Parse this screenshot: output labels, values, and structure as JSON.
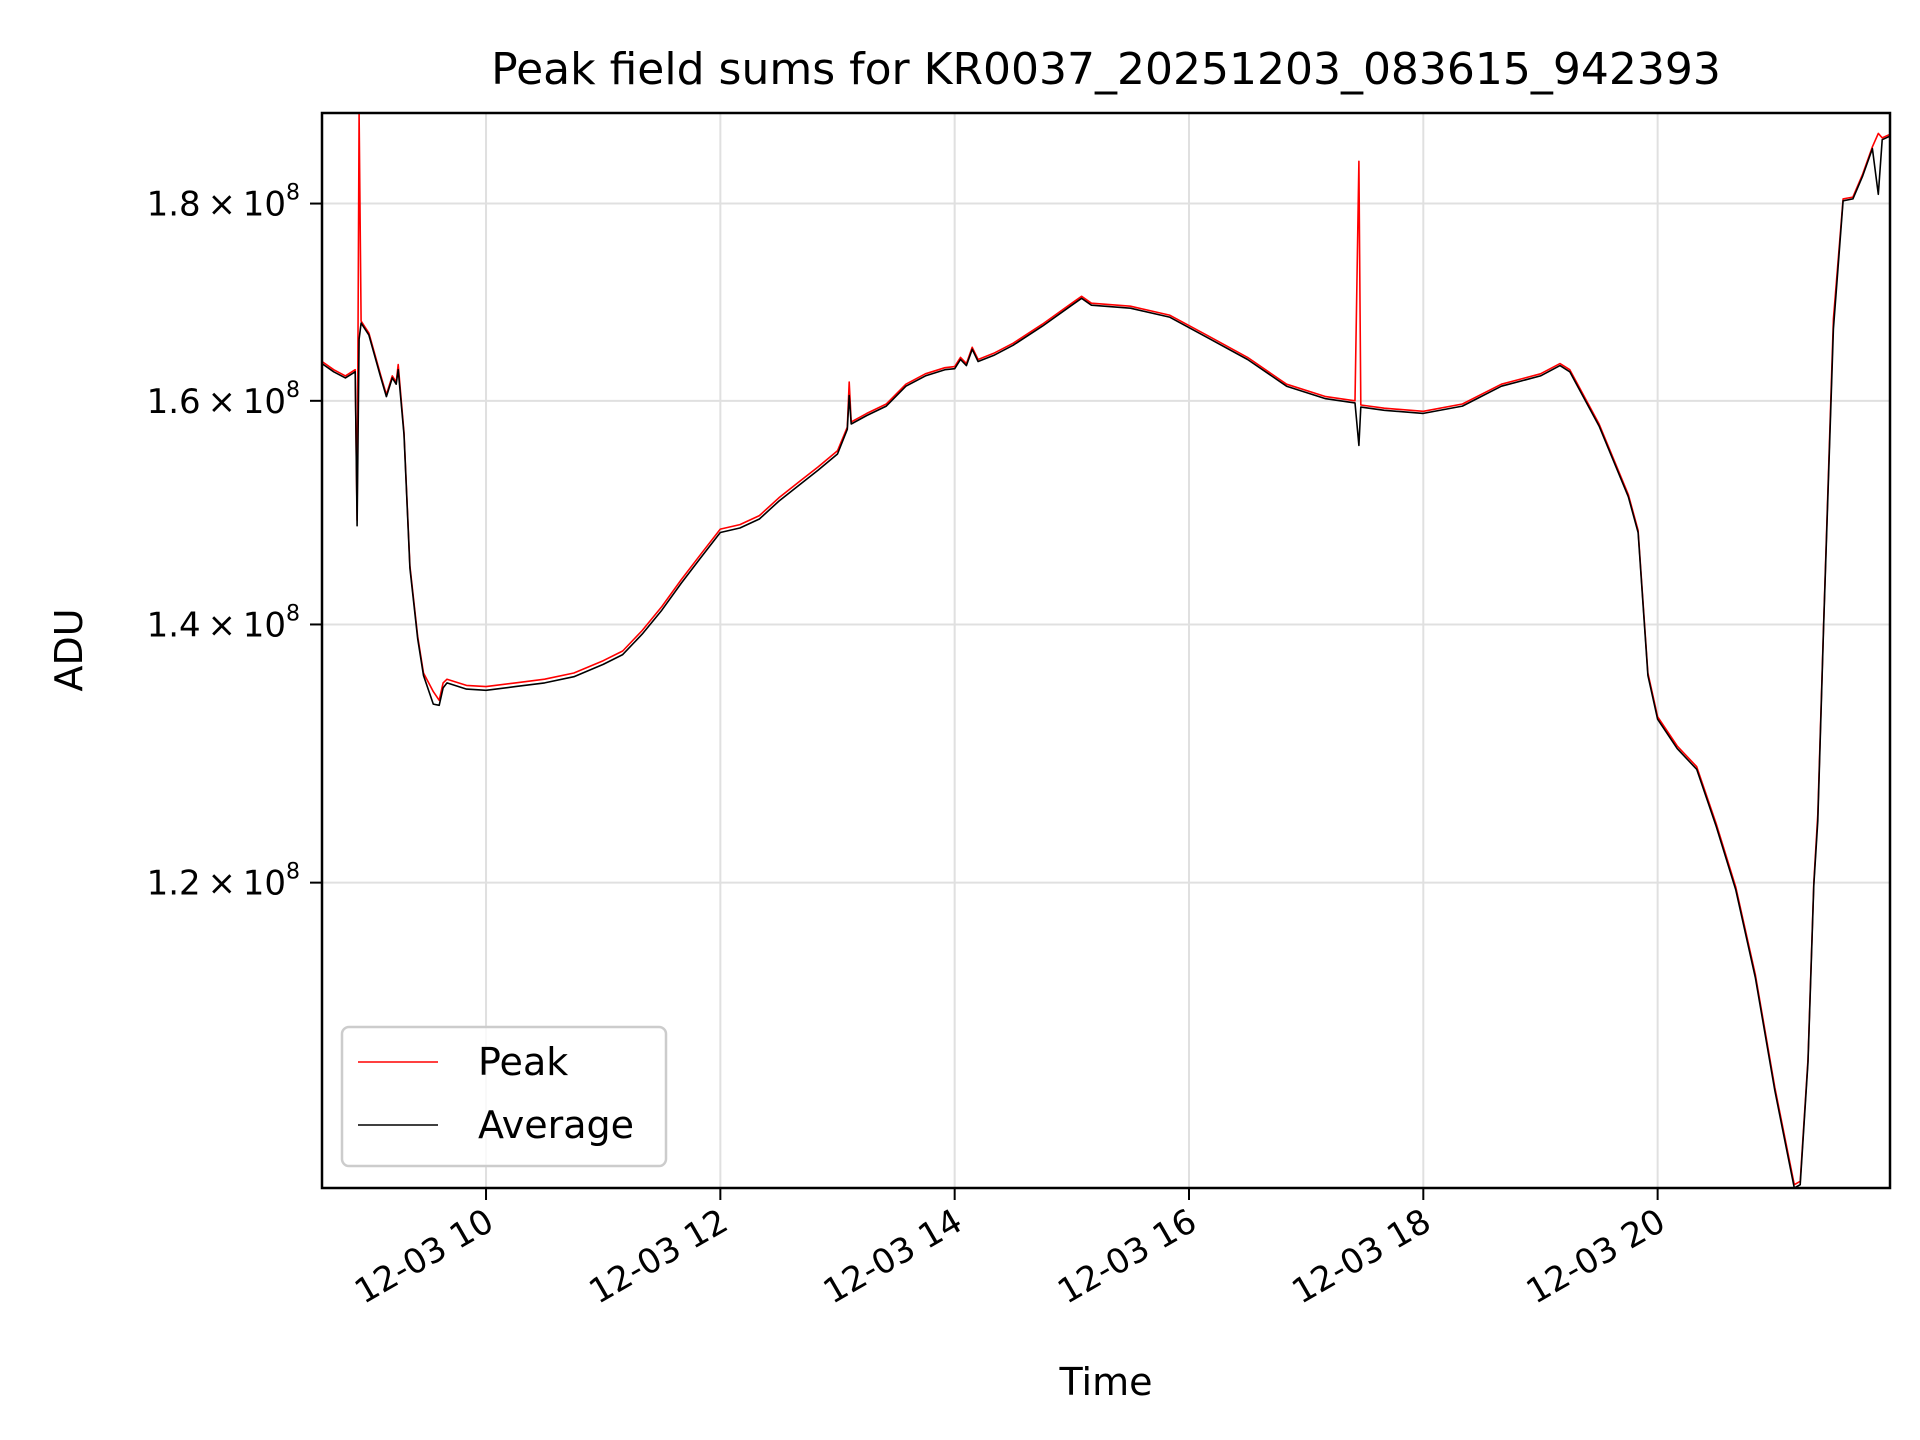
{
  "chart_data": {
    "type": "line",
    "title": "Peak field sums for KR0037_20251203_083615_942393",
    "xlabel": "Time",
    "ylabel": "ADU",
    "y_scale": "log",
    "xlim": [
      "2025-12-03 08:36",
      "2025-12-03 21:59"
    ],
    "ylim": [
      100000000,
      190000000
    ],
    "grid": true,
    "legend_placement": "lower-left",
    "x_ticks": [
      {
        "value": "2025-12-03 10:00",
        "label": "12-03 10"
      },
      {
        "value": "2025-12-03 12:00",
        "label": "12-03 12"
      },
      {
        "value": "2025-12-03 14:00",
        "label": "12-03 14"
      },
      {
        "value": "2025-12-03 16:00",
        "label": "12-03 16"
      },
      {
        "value": "2025-12-03 18:00",
        "label": "12-03 18"
      },
      {
        "value": "2025-12-03 20:00",
        "label": "12-03 20"
      }
    ],
    "y_ticks": [
      {
        "value": 120000000,
        "mantissa": "1.2",
        "base": "10",
        "exp": "8"
      },
      {
        "value": 140000000,
        "mantissa": "1.4",
        "base": "10",
        "exp": "8"
      },
      {
        "value": 160000000,
        "mantissa": "1.6",
        "base": "10",
        "exp": "8"
      },
      {
        "value": 180000000,
        "mantissa": "1.8",
        "base": "10",
        "exp": "8"
      }
    ],
    "series": [
      {
        "name": "Peak",
        "color": "#ff0000",
        "points": [
          [
            "2025-12-03 08:36",
            163800000
          ],
          [
            "2025-12-03 08:42",
            163000000
          ],
          [
            "2025-12-03 08:48",
            162400000
          ],
          [
            "2025-12-03 08:53",
            163000000
          ],
          [
            "2025-12-03 08:54",
            149000000
          ],
          [
            "2025-12-03 08:55",
            190000000
          ],
          [
            "2025-12-03 08:56",
            167800000
          ],
          [
            "2025-12-03 09:00",
            166600000
          ],
          [
            "2025-12-03 09:06",
            162500000
          ],
          [
            "2025-12-03 09:09",
            160600000
          ],
          [
            "2025-12-03 09:12",
            162400000
          ],
          [
            "2025-12-03 09:14",
            161800000
          ],
          [
            "2025-12-03 09:15",
            163500000
          ],
          [
            "2025-12-03 09:18",
            157000000
          ],
          [
            "2025-12-03 09:21",
            145000000
          ],
          [
            "2025-12-03 09:25",
            139000000
          ],
          [
            "2025-12-03 09:28",
            136000000
          ],
          [
            "2025-12-03 09:33",
            134500000
          ],
          [
            "2025-12-03 09:36",
            133800000
          ],
          [
            "2025-12-03 09:38",
            135200000
          ],
          [
            "2025-12-03 09:40",
            135500000
          ],
          [
            "2025-12-03 09:50",
            135000000
          ],
          [
            "2025-12-03 10:00",
            134900000
          ],
          [
            "2025-12-03 10:15",
            135200000
          ],
          [
            "2025-12-03 10:30",
            135500000
          ],
          [
            "2025-12-03 10:45",
            136000000
          ],
          [
            "2025-12-03 11:00",
            137000000
          ],
          [
            "2025-12-03 11:10",
            137800000
          ],
          [
            "2025-12-03 11:20",
            139500000
          ],
          [
            "2025-12-03 11:30",
            141500000
          ],
          [
            "2025-12-03 11:40",
            143800000
          ],
          [
            "2025-12-03 11:50",
            146000000
          ],
          [
            "2025-12-03 12:00",
            148200000
          ],
          [
            "2025-12-03 12:10",
            148600000
          ],
          [
            "2025-12-03 12:20",
            149400000
          ],
          [
            "2025-12-03 12:30",
            151000000
          ],
          [
            "2025-12-03 12:40",
            152400000
          ],
          [
            "2025-12-03 12:50",
            153800000
          ],
          [
            "2025-12-03 13:00",
            155300000
          ],
          [
            "2025-12-03 13:05",
            157500000
          ],
          [
            "2025-12-03 13:06",
            161800000
          ],
          [
            "2025-12-03 13:07",
            158000000
          ],
          [
            "2025-12-03 13:15",
            158800000
          ],
          [
            "2025-12-03 13:25",
            159700000
          ],
          [
            "2025-12-03 13:35",
            161600000
          ],
          [
            "2025-12-03 13:45",
            162600000
          ],
          [
            "2025-12-03 13:55",
            163200000
          ],
          [
            "2025-12-03 14:00",
            163300000
          ],
          [
            "2025-12-03 14:03",
            164200000
          ],
          [
            "2025-12-03 14:06",
            163600000
          ],
          [
            "2025-12-03 14:09",
            165200000
          ],
          [
            "2025-12-03 14:12",
            164000000
          ],
          [
            "2025-12-03 14:20",
            164600000
          ],
          [
            "2025-12-03 14:30",
            165600000
          ],
          [
            "2025-12-03 14:45",
            167500000
          ],
          [
            "2025-12-03 15:00",
            169600000
          ],
          [
            "2025-12-03 15:05",
            170300000
          ],
          [
            "2025-12-03 15:10",
            169600000
          ],
          [
            "2025-12-03 15:30",
            169300000
          ],
          [
            "2025-12-03 15:50",
            168400000
          ],
          [
            "2025-12-03 16:10",
            166300000
          ],
          [
            "2025-12-03 16:30",
            164200000
          ],
          [
            "2025-12-03 16:50",
            161600000
          ],
          [
            "2025-12-03 17:10",
            160400000
          ],
          [
            "2025-12-03 17:25",
            160000000
          ],
          [
            "2025-12-03 17:27",
            184600000
          ],
          [
            "2025-12-03 17:28",
            159600000
          ],
          [
            "2025-12-03 17:40",
            159300000
          ],
          [
            "2025-12-03 18:00",
            159000000
          ],
          [
            "2025-12-03 18:20",
            159700000
          ],
          [
            "2025-12-03 18:40",
            161600000
          ],
          [
            "2025-12-03 19:00",
            162600000
          ],
          [
            "2025-12-03 19:10",
            163600000
          ],
          [
            "2025-12-03 19:15",
            163000000
          ],
          [
            "2025-12-03 19:30",
            157800000
          ],
          [
            "2025-12-03 19:45",
            151300000
          ],
          [
            "2025-12-03 19:50",
            148100000
          ],
          [
            "2025-12-03 19:55",
            136000000
          ],
          [
            "2025-12-03 20:00",
            132500000
          ],
          [
            "2025-12-03 20:10",
            130200000
          ],
          [
            "2025-12-03 20:20",
            128600000
          ],
          [
            "2025-12-03 20:30",
            124300000
          ],
          [
            "2025-12-03 20:40",
            119700000
          ],
          [
            "2025-12-03 20:50",
            113600000
          ],
          [
            "2025-12-03 21:00",
            106200000
          ],
          [
            "2025-12-03 21:10",
            100200000
          ],
          [
            "2025-12-03 21:13",
            100400000
          ],
          [
            "2025-12-03 21:17",
            108000000
          ],
          [
            "2025-12-03 21:20",
            120000000
          ],
          [
            "2025-12-03 21:22",
            125000000
          ],
          [
            "2025-12-03 21:25",
            140000000
          ],
          [
            "2025-12-03 21:30",
            168000000
          ],
          [
            "2025-12-03 21:35",
            180500000
          ],
          [
            "2025-12-03 21:40",
            180700000
          ],
          [
            "2025-12-03 21:45",
            183200000
          ],
          [
            "2025-12-03 21:50",
            186200000
          ],
          [
            "2025-12-03 21:53",
            187700000
          ],
          [
            "2025-12-03 21:55",
            187200000
          ],
          [
            "2025-12-03 21:59",
            187600000
          ]
        ]
      },
      {
        "name": "Average",
        "color": "#000000",
        "points": [
          [
            "2025-12-03 08:36",
            163600000
          ],
          [
            "2025-12-03 08:42",
            162800000
          ],
          [
            "2025-12-03 08:48",
            162200000
          ],
          [
            "2025-12-03 08:53",
            162800000
          ],
          [
            "2025-12-03 08:54",
            148500000
          ],
          [
            "2025-12-03 08:55",
            166000000
          ],
          [
            "2025-12-03 08:56",
            167600000
          ],
          [
            "2025-12-03 09:00",
            166400000
          ],
          [
            "2025-12-03 09:06",
            162300000
          ],
          [
            "2025-12-03 09:09",
            160400000
          ],
          [
            "2025-12-03 09:12",
            162200000
          ],
          [
            "2025-12-03 09:14",
            161600000
          ],
          [
            "2025-12-03 09:15",
            163000000
          ],
          [
            "2025-12-03 09:18",
            156800000
          ],
          [
            "2025-12-03 09:21",
            144800000
          ],
          [
            "2025-12-03 09:25",
            138800000
          ],
          [
            "2025-12-03 09:28",
            135800000
          ],
          [
            "2025-12-03 09:33",
            133500000
          ],
          [
            "2025-12-03 09:36",
            133400000
          ],
          [
            "2025-12-03 09:38",
            134800000
          ],
          [
            "2025-12-03 09:40",
            135200000
          ],
          [
            "2025-12-03 09:50",
            134700000
          ],
          [
            "2025-12-03 10:00",
            134600000
          ],
          [
            "2025-12-03 10:15",
            134900000
          ],
          [
            "2025-12-03 10:30",
            135200000
          ],
          [
            "2025-12-03 10:45",
            135700000
          ],
          [
            "2025-12-03 11:00",
            136700000
          ],
          [
            "2025-12-03 11:10",
            137500000
          ],
          [
            "2025-12-03 11:20",
            139200000
          ],
          [
            "2025-12-03 11:30",
            141200000
          ],
          [
            "2025-12-03 11:40",
            143500000
          ],
          [
            "2025-12-03 11:50",
            145700000
          ],
          [
            "2025-12-03 12:00",
            147900000
          ],
          [
            "2025-12-03 12:10",
            148300000
          ],
          [
            "2025-12-03 12:20",
            149100000
          ],
          [
            "2025-12-03 12:30",
            150700000
          ],
          [
            "2025-12-03 12:40",
            152100000
          ],
          [
            "2025-12-03 12:50",
            153500000
          ],
          [
            "2025-12-03 13:00",
            155000000
          ],
          [
            "2025-12-03 13:05",
            157300000
          ],
          [
            "2025-12-03 13:06",
            160500000
          ],
          [
            "2025-12-03 13:07",
            157800000
          ],
          [
            "2025-12-03 13:15",
            158600000
          ],
          [
            "2025-12-03 13:25",
            159500000
          ],
          [
            "2025-12-03 13:35",
            161400000
          ],
          [
            "2025-12-03 13:45",
            162400000
          ],
          [
            "2025-12-03 13:55",
            163000000
          ],
          [
            "2025-12-03 14:00",
            163100000
          ],
          [
            "2025-12-03 14:03",
            164000000
          ],
          [
            "2025-12-03 14:06",
            163400000
          ],
          [
            "2025-12-03 14:09",
            165000000
          ],
          [
            "2025-12-03 14:12",
            163800000
          ],
          [
            "2025-12-03 14:20",
            164400000
          ],
          [
            "2025-12-03 14:30",
            165400000
          ],
          [
            "2025-12-03 14:45",
            167300000
          ],
          [
            "2025-12-03 15:00",
            169400000
          ],
          [
            "2025-12-03 15:05",
            170100000
          ],
          [
            "2025-12-03 15:10",
            169400000
          ],
          [
            "2025-12-03 15:30",
            169100000
          ],
          [
            "2025-12-03 15:50",
            168200000
          ],
          [
            "2025-12-03 16:10",
            166100000
          ],
          [
            "2025-12-03 16:30",
            164000000
          ],
          [
            "2025-12-03 16:50",
            161400000
          ],
          [
            "2025-12-03 17:10",
            160200000
          ],
          [
            "2025-12-03 17:25",
            159800000
          ],
          [
            "2025-12-03 17:27",
            155800000
          ],
          [
            "2025-12-03 17:28",
            159400000
          ],
          [
            "2025-12-03 17:40",
            159100000
          ],
          [
            "2025-12-03 18:00",
            158800000
          ],
          [
            "2025-12-03 18:20",
            159500000
          ],
          [
            "2025-12-03 18:40",
            161400000
          ],
          [
            "2025-12-03 19:00",
            162400000
          ],
          [
            "2025-12-03 19:10",
            163400000
          ],
          [
            "2025-12-03 19:15",
            162800000
          ],
          [
            "2025-12-03 19:30",
            157600000
          ],
          [
            "2025-12-03 19:45",
            151100000
          ],
          [
            "2025-12-03 19:50",
            147900000
          ],
          [
            "2025-12-03 19:55",
            135800000
          ],
          [
            "2025-12-03 20:00",
            132300000
          ],
          [
            "2025-12-03 20:10",
            130000000
          ],
          [
            "2025-12-03 20:20",
            128400000
          ],
          [
            "2025-12-03 20:30",
            124100000
          ],
          [
            "2025-12-03 20:40",
            119500000
          ],
          [
            "2025-12-03 20:50",
            113400000
          ],
          [
            "2025-12-03 21:00",
            106000000
          ],
          [
            "2025-12-03 21:10",
            100000000
          ],
          [
            "2025-12-03 21:13",
            100200000
          ],
          [
            "2025-12-03 21:17",
            107800000
          ],
          [
            "2025-12-03 21:20",
            119800000
          ],
          [
            "2025-12-03 21:22",
            124500000
          ],
          [
            "2025-12-03 21:25",
            139800000
          ],
          [
            "2025-12-03 21:30",
            167000000
          ],
          [
            "2025-12-03 21:35",
            180300000
          ],
          [
            "2025-12-03 21:40",
            180500000
          ],
          [
            "2025-12-03 21:45",
            183000000
          ],
          [
            "2025-12-03 21:50",
            186000000
          ],
          [
            "2025-12-03 21:53",
            181000000
          ],
          [
            "2025-12-03 21:55",
            187000000
          ],
          [
            "2025-12-03 21:59",
            187400000
          ]
        ]
      }
    ]
  }
}
